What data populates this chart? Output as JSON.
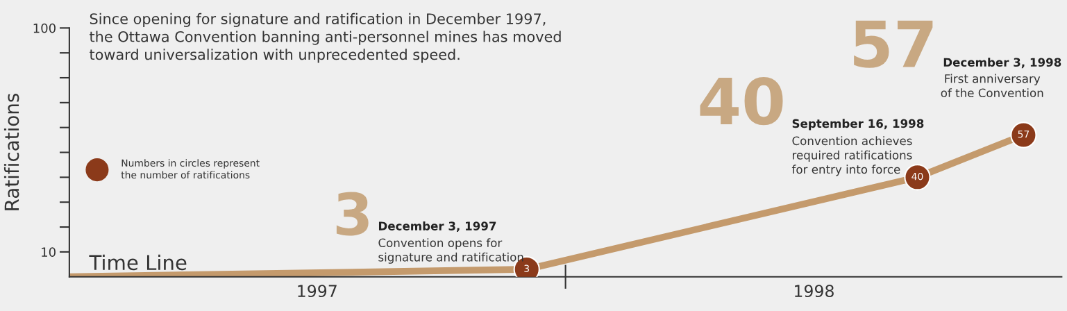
{
  "chart_data": {
    "type": "line",
    "ylabel": "Ratifications",
    "x": [
      "1997-01-01",
      "1997-12-03",
      "1998-09-16",
      "1998-12-03"
    ],
    "series": [
      {
        "color": "#c49a6c",
        "values": [
          0,
          3,
          40,
          57
        ],
        "value_labels": [
          null,
          "3",
          "40",
          "57"
        ],
        "colors": [
          null,
          "#8b3a1a",
          "#8b3a1a",
          "#8b3a1a"
        ]
      }
    ],
    "marker": "circle",
    "xlim": [
      "1997-01-01",
      "1998-12-31"
    ],
    "xticks": [
      {
        "value": "1997-07-02",
        "label": "1997"
      },
      {
        "value": "1998-07-02",
        "label": "1998"
      }
    ],
    "ylim": [
      0,
      100
    ],
    "yticks": [
      {
        "value": 10,
        "label": "10"
      },
      {
        "value": 20,
        "label": null
      },
      {
        "value": 30,
        "label": null
      },
      {
        "value": 40,
        "label": null
      },
      {
        "value": 50,
        "label": null
      },
      {
        "value": 60,
        "label": null
      },
      {
        "value": 70,
        "label": null
      },
      {
        "value": 80,
        "label": null
      },
      {
        "value": 90,
        "label": null
      },
      {
        "value": 100,
        "label": "100"
      }
    ],
    "grid": false,
    "annotations": [
      "Since opening for signature and ratification in December 1997,\nthe Ottawa Convention banning anti-personnel mines has moved\ntoward universalization with unprecedented speed.",
      "Time Line",
      "Numbers in circles represent\nthe number of ratifications",
      "3",
      "December 3, 1997",
      "Convention opens for\nsignature and ratification",
      "40",
      "September 16, 1998",
      "Convention achieves\nrequired ratifications\nfor entry into force",
      "57",
      "December 3, 1998",
      "First anniversary\nof the Convention"
    ]
  }
}
